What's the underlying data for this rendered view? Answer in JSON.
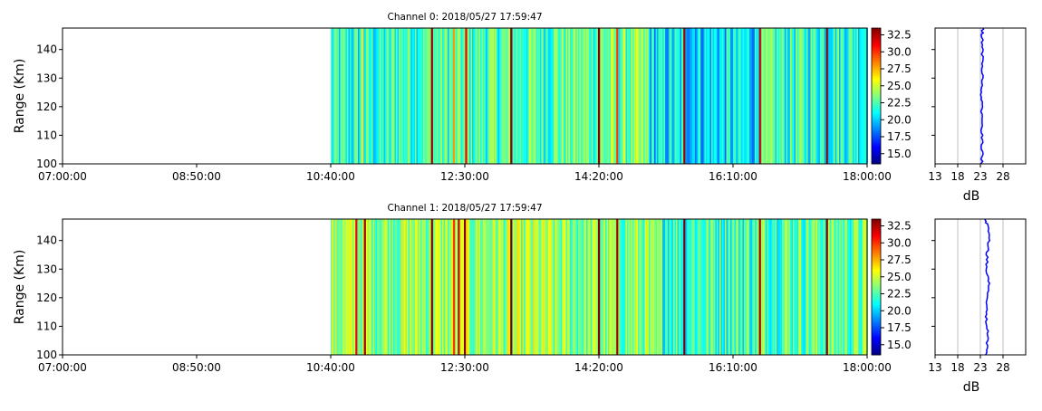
{
  "colors": {
    "jet": [
      "#00007f",
      "#0000ff",
      "#007fff",
      "#00ffff",
      "#7fff7f",
      "#ffff00",
      "#ff7f00",
      "#ff0000",
      "#7f0000"
    ],
    "profile_line": "#0000ff",
    "grid": "#b0b0b0",
    "axis": "#000000"
  },
  "chart_data": [
    {
      "type": "heatmap",
      "title": "Channel 0: 2018/05/27 17:59:47",
      "ylabel": "Range (Km)",
      "xlabel": "",
      "xlim": [
        "07:00:00",
        "18:00:00"
      ],
      "x_tick_labels": [
        "07:00:00",
        "08:50:00",
        "10:40:00",
        "12:30:00",
        "14:20:00",
        "16:10:00",
        "18:00:00"
      ],
      "ylim": [
        100,
        147.5
      ],
      "y_tick_labels": [
        "100",
        "110",
        "120",
        "130",
        "140"
      ],
      "data_start": "10:40:00",
      "data_end": "18:00:00",
      "colorbar": {
        "range": [
          13.5,
          33.5
        ],
        "tick_labels": [
          "15.0",
          "17.5",
          "20.0",
          "22.5",
          "25.0",
          "27.5",
          "30.0",
          "32.5"
        ]
      },
      "baseline_db": 22.0,
      "segments": [
        {
          "start": "10:40:00",
          "end": "11:30:00",
          "level": 21.5
        },
        {
          "start": "11:30:00",
          "end": "13:40:00",
          "level": 22.5
        },
        {
          "start": "13:40:00",
          "end": "15:00:00",
          "level": 23.0
        },
        {
          "start": "15:00:00",
          "end": "16:30:00",
          "level": 20.5
        },
        {
          "start": "16:30:00",
          "end": "18:00:00",
          "level": 22.0
        }
      ],
      "spikes": [
        {
          "time": "11:06:00",
          "level": 26.5
        },
        {
          "time": "12:03:00",
          "level": 33.0
        },
        {
          "time": "12:21:00",
          "level": 28.0
        },
        {
          "time": "12:31:00",
          "level": 31.0
        },
        {
          "time": "13:08:00",
          "level": 33.0
        },
        {
          "time": "14:20:00",
          "level": 33.5
        },
        {
          "time": "14:35:00",
          "level": 30.0
        },
        {
          "time": "15:30:00",
          "level": 33.0
        },
        {
          "time": "16:32:00",
          "level": 32.0
        },
        {
          "time": "17:27:00",
          "level": 33.5
        }
      ],
      "profile": {
        "xlabel": "dB",
        "xlim": [
          13,
          33
        ],
        "x_tick_labels": [
          "13",
          "18",
          "23",
          "28"
        ],
        "ylim": [
          100,
          147.5
        ],
        "range_km": [
          100,
          105,
          110,
          115,
          120,
          125,
          130,
          135,
          140,
          145,
          147.5
        ],
        "power_db": [
          23.3,
          23.4,
          23.3,
          23.4,
          23.3,
          23.2,
          23.4,
          23.3,
          23.5,
          23.4,
          23.6
        ]
      }
    },
    {
      "type": "heatmap",
      "title": "Channel 1: 2018/05/27 17:59:47",
      "ylabel": "Range (Km)",
      "xlabel": "",
      "xlim": [
        "07:00:00",
        "18:00:00"
      ],
      "x_tick_labels": [
        "07:00:00",
        "08:50:00",
        "10:40:00",
        "12:30:00",
        "14:20:00",
        "16:10:00",
        "18:00:00"
      ],
      "ylim": [
        100,
        147.5
      ],
      "y_tick_labels": [
        "100",
        "110",
        "120",
        "130",
        "140"
      ],
      "data_start": "10:40:00",
      "data_end": "18:00:00",
      "colorbar": {
        "range": [
          13.5,
          33.5
        ],
        "tick_labels": [
          "15.0",
          "17.5",
          "20.0",
          "22.5",
          "25.0",
          "27.5",
          "30.0",
          "32.5"
        ]
      },
      "baseline_db": 23.5,
      "segments": [
        {
          "start": "10:40:00",
          "end": "11:30:00",
          "level": 24.0
        },
        {
          "start": "11:30:00",
          "end": "13:40:00",
          "level": 24.0
        },
        {
          "start": "13:40:00",
          "end": "15:00:00",
          "level": 23.5
        },
        {
          "start": "15:00:00",
          "end": "16:30:00",
          "level": 22.5
        },
        {
          "start": "16:30:00",
          "end": "18:00:00",
          "level": 23.0
        }
      ],
      "spikes": [
        {
          "time": "11:01:00",
          "level": 31.0
        },
        {
          "time": "11:08:00",
          "level": 33.0
        },
        {
          "time": "12:03:00",
          "level": 33.5
        },
        {
          "time": "12:21:00",
          "level": 30.0
        },
        {
          "time": "12:25:00",
          "level": 32.0
        },
        {
          "time": "12:30:00",
          "level": 33.5
        },
        {
          "time": "13:08:00",
          "level": 33.5
        },
        {
          "time": "14:20:00",
          "level": 33.5
        },
        {
          "time": "14:35:00",
          "level": 33.0
        },
        {
          "time": "15:30:00",
          "level": 33.5
        },
        {
          "time": "16:32:00",
          "level": 33.0
        },
        {
          "time": "17:27:00",
          "level": 33.5
        }
      ],
      "profile": {
        "xlabel": "dB",
        "xlim": [
          13,
          33
        ],
        "x_tick_labels": [
          "13",
          "18",
          "23",
          "28"
        ],
        "ylim": [
          100,
          147.5
        ],
        "range_km": [
          100,
          105,
          110,
          115,
          120,
          125,
          130,
          135,
          140,
          145,
          147.5
        ],
        "power_db": [
          24.3,
          24.6,
          24.5,
          24.2,
          24.7,
          24.9,
          24.4,
          24.5,
          24.8,
          24.6,
          24.1
        ]
      }
    }
  ]
}
